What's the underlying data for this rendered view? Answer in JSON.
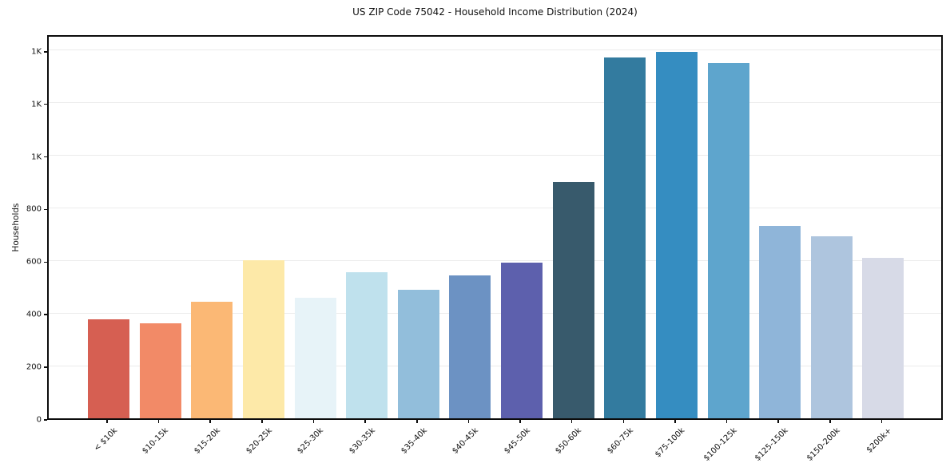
{
  "title": "US ZIP Code 75042 - Household Income Distribution (2024)",
  "chart_data": {
    "type": "bar",
    "title": "US ZIP Code 75042 - Household Income Distribution (2024)",
    "xlabel": "",
    "ylabel": "Households",
    "categories": [
      "< $10k",
      "$10-15k",
      "$15-20k",
      "$20-25k",
      "$25-30k",
      "$30-35k",
      "$35-40k",
      "$40-45k",
      "$45-50k",
      "$50-60k",
      "$60-75k",
      "$75-100k",
      "$100-125k",
      "$125-150k",
      "$150-200k",
      "$200k+"
    ],
    "values": [
      375,
      362,
      444,
      600,
      458,
      556,
      488,
      542,
      591,
      898,
      1372,
      1393,
      1350,
      731,
      692,
      611
    ],
    "bar_colors": [
      "#d65f52",
      "#f28a67",
      "#fbb875",
      "#fde9a8",
      "#e7f3f8",
      "#bfe1ed",
      "#92bedb",
      "#6c92c3",
      "#5d60ad",
      "#385a6c",
      "#337b9f",
      "#358dc1",
      "#5ea5cd",
      "#8fb5d9",
      "#aec5de",
      "#d7dae7"
    ],
    "ytick_values": [
      0,
      200,
      400,
      600,
      800,
      1000,
      1200,
      1400
    ],
    "ytick_labels": [
      "0",
      "200",
      "400",
      "600",
      "800",
      "1K",
      "1K",
      "1K"
    ],
    "ylim": [
      0,
      1463
    ],
    "grid": "horizontal",
    "gridline_color": "#ececec",
    "legend": "none",
    "plot_background": "#ffffff",
    "spine_color": "#0c0c0c",
    "text_color": "#111111"
  }
}
